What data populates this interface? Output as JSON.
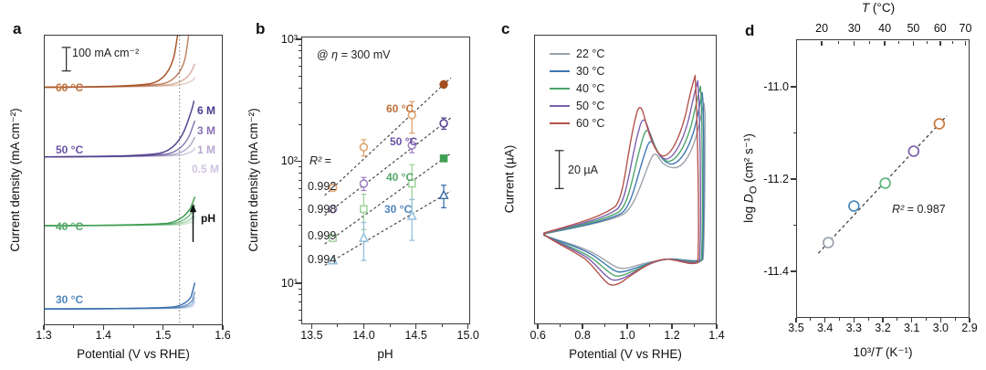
{
  "figure": {
    "panels": {
      "a": {
        "label": "a",
        "scale_bar_label": "100 mA cm⁻²",
        "y_title": "Current density (mA cm⁻²)",
        "x_title": "Potential (V vs RHE)",
        "temp_labels": [
          {
            "text": "60 °C",
            "color": "#bf6f38",
            "curve_color": "#a8552a"
          },
          {
            "text": "50 °C",
            "color": "#6b55a6",
            "curve_color": "#54418f"
          },
          {
            "text": "40 °C",
            "color": "#55a668",
            "curve_color": "#3f9e52"
          },
          {
            "text": "30 °C",
            "color": "#4d87bd",
            "curve_color": "#3c70ad"
          }
        ],
        "conc_labels": [
          {
            "text": "6 M",
            "color": "#4a3b91"
          },
          {
            "text": "3 M",
            "color": "#8a70b5"
          },
          {
            "text": "1 M",
            "color": "#b7a6d0"
          },
          {
            "text": "0.5 M",
            "color": "#cfc3de"
          }
        ],
        "arrow_label": "pH"
      },
      "b": {
        "label": "b",
        "annotation": {
          "pre": "@ ",
          "var": "η",
          "post": " = 300 mV"
        },
        "y_title": "Current density (mA cm⁻²)",
        "x_title": "pH",
        "y_tick_labels": [
          "10³",
          "10²",
          "10¹"
        ],
        "r2_heading": {
          "var": "R²",
          "rest": " ="
        },
        "r2_values": [
          "0.992",
          "0.998",
          "0.999",
          "0.994"
        ],
        "series_labels": [
          {
            "text": "60 °C",
            "color": "#bf6f38"
          },
          {
            "text": "50 °C",
            "color": "#6b55a6"
          },
          {
            "text": "40 °C",
            "color": "#55a668"
          },
          {
            "text": "30 °C",
            "color": "#4d87bd"
          }
        ]
      },
      "c": {
        "label": "c",
        "y_title": "Current (µA)",
        "x_title": "Potential (V vs RHE)",
        "scale_bar_label": "20 µA"
      },
      "d": {
        "label": "d",
        "top_title": {
          "var": "T",
          "rest": " (°C)"
        },
        "x_title": {
          "pre": "10³/",
          "var": "T",
          "post": " (K⁻¹)"
        },
        "y_title": {
          "pre": "log ",
          "var": "D",
          "sub": "O",
          "post": " (cm² s⁻¹)"
        },
        "r2": {
          "var": "R²",
          "rest": " = 0.987"
        }
      }
    }
  },
  "chart_data": [
    {
      "id": "a",
      "type": "line",
      "xlabel": "Potential (V vs RHE)",
      "ylabel": "Current density (mA cm⁻²)",
      "xlim": [
        1.3,
        1.6
      ],
      "x_ticks": [
        {
          "v": 1.3,
          "label": "1.3"
        },
        {
          "v": 1.4,
          "label": "1.4"
        },
        {
          "v": 1.5,
          "label": "1.5"
        },
        {
          "v": 1.6,
          "label": "1.6"
        }
      ],
      "x_minor_ticks": [
        1.35,
        1.45,
        1.55
      ],
      "scale_bar": "100 mA cm⁻²",
      "guide_line_V": 1.53,
      "note": "LSV curves vertically offset by temperature; four KOH concentrations per temperature; arrow marks increasing pH",
      "series": [
        {
          "name": "60 °C",
          "concentrations": [
            "6 M",
            "3 M",
            "1 M",
            "0.5 M"
          ],
          "onset_V": 1.44
        },
        {
          "name": "50 °C",
          "concentrations": [
            "6 M",
            "3 M",
            "1 M",
            "0.5 M"
          ],
          "onset_V": 1.46
        },
        {
          "name": "40 °C",
          "concentrations": [
            "6 M",
            "3 M",
            "1 M",
            "0.5 M"
          ],
          "onset_V": 1.48
        },
        {
          "name": "30 °C",
          "concentrations": [
            "6 M",
            "3 M",
            "1 M",
            "0.5 M"
          ],
          "onset_V": 1.5
        }
      ]
    },
    {
      "id": "b",
      "type": "scatter",
      "annotation": "@ η = 300 mV",
      "xlabel": "pH",
      "ylabel": "Current density (mA cm⁻²)",
      "ylog": true,
      "ylim": [
        5,
        1000
      ],
      "xlim": [
        13.4,
        15.02
      ],
      "x": [
        13.7,
        14.0,
        14.47,
        14.78
      ],
      "x_ticks": [
        {
          "v": 13.5,
          "label": "13.5"
        },
        {
          "v": 14.0,
          "label": "14.0"
        },
        {
          "v": 14.5,
          "label": "14.5"
        },
        {
          "v": 15.0,
          "label": "15.0"
        }
      ],
      "x_minor_ticks": [
        13.75,
        14.25,
        14.75
      ],
      "series": [
        {
          "name": "60 °C",
          "r2": 0.992,
          "marker": "circle",
          "color": "#dfa26d",
          "last_color": "#a34f1f",
          "last_filled": true,
          "values": [
            60,
            130,
            240,
            430
          ],
          "yerr": [
            0,
            20,
            70,
            0
          ]
        },
        {
          "name": "50 °C",
          "r2": 0.998,
          "marker": "circle",
          "color": "#9d82c2",
          "last_color": "#55418f",
          "last_filled": false,
          "values": [
            40,
            65,
            135,
            205
          ],
          "yerr": [
            0,
            8,
            18,
            22
          ]
        },
        {
          "name": "40 °C",
          "r2": 0.999,
          "marker": "square",
          "color": "#9ed29a",
          "last_color": "#3f9e52",
          "last_filled": true,
          "values": [
            23,
            40,
            65,
            105
          ],
          "yerr": [
            0,
            13,
            28,
            0
          ]
        },
        {
          "name": "30 °C",
          "r2": 0.994,
          "marker": "triangle",
          "color": "#93c0df",
          "last_color": "#3c70ad",
          "last_filled": false,
          "values": [
            15,
            23,
            35,
            52
          ],
          "yerr": [
            0,
            8,
            13,
            11
          ]
        }
      ]
    },
    {
      "id": "c",
      "type": "line",
      "xlabel": "Potential (V vs RHE)",
      "ylabel": "Current (µA)",
      "xlim": [
        0.583,
        1.4
      ],
      "x_ticks": [
        {
          "v": 0.6,
          "label": "0.6"
        },
        {
          "v": 0.8,
          "label": "0.8"
        },
        {
          "v": 1.0,
          "label": "1.0"
        },
        {
          "v": 1.2,
          "label": "1.2"
        },
        {
          "v": 1.4,
          "label": "1.4"
        }
      ],
      "x_minor_ticks": [
        0.7,
        0.9,
        1.1,
        1.3
      ],
      "scale_bar": "20 µA",
      "series": [
        {
          "name": "22 °C",
          "color": "#9aa1ab",
          "anodic_peak_V": 1.12,
          "cathodic_peak_V": 1.0
        },
        {
          "name": "30 °C",
          "color": "#3d77b2",
          "anodic_peak_V": 1.1,
          "cathodic_peak_V": 0.99
        },
        {
          "name": "40 °C",
          "color": "#4ba368",
          "anodic_peak_V": 1.08,
          "cathodic_peak_V": 0.98
        },
        {
          "name": "50 °C",
          "color": "#7b5fae",
          "anodic_peak_V": 1.06,
          "cathodic_peak_V": 0.97
        },
        {
          "name": "60 °C",
          "color": "#b5524a",
          "anodic_peak_V": 1.05,
          "cathodic_peak_V": 0.96
        }
      ]
    },
    {
      "id": "d",
      "type": "scatter",
      "xlabel": "10³/T (K⁻¹)",
      "ylabel": "log Dₒ (cm² s⁻¹)",
      "top_xlabel": "T (°C)",
      "xlim": [
        3.5,
        2.9
      ],
      "ylim": [
        -11.5,
        -10.9
      ],
      "r_squared": 0.987,
      "x_ticks": [
        {
          "v": 3.5,
          "label": "3.5"
        },
        {
          "v": 3.4,
          "label": "3.4"
        },
        {
          "v": 3.3,
          "label": "3.3"
        },
        {
          "v": 3.2,
          "label": "3.2"
        },
        {
          "v": 3.1,
          "label": "3.1"
        },
        {
          "v": 3.0,
          "label": "3.0"
        },
        {
          "v": 2.9,
          "label": "2.9"
        }
      ],
      "x_minor_ticks": [
        3.45,
        3.35,
        3.25,
        3.15,
        3.05,
        2.95
      ],
      "top_ticks": [
        {
          "v": 20,
          "label": "20"
        },
        {
          "v": 30,
          "label": "30"
        },
        {
          "v": 40,
          "label": "40"
        },
        {
          "v": 50,
          "label": "50"
        },
        {
          "v": 60,
          "label": "60"
        },
        {
          "v": 70,
          "label": "70"
        }
      ],
      "top_minor_ticks": [
        25,
        35,
        45,
        55,
        65
      ],
      "y_ticks": [
        {
          "v": -11.0,
          "label": "-11.0"
        },
        {
          "v": -11.2,
          "label": "-11.2"
        },
        {
          "v": -11.4,
          "label": "-11.4"
        }
      ],
      "y_minor_ticks": [
        -11.1,
        -11.3
      ],
      "points": [
        {
          "name": "22 °C",
          "x": 3.39,
          "y": -11.34,
          "color": "#9aa1ab"
        },
        {
          "name": "30 °C",
          "x": 3.3,
          "y": -11.26,
          "color": "#4a86be"
        },
        {
          "name": "40 °C",
          "x": 3.19,
          "y": -11.21,
          "color": "#5cb87a"
        },
        {
          "name": "50 °C",
          "x": 3.09,
          "y": -11.14,
          "color": "#7b5fae"
        },
        {
          "name": "60 °C",
          "x": 3.0,
          "y": -11.08,
          "color": "#c8763a"
        }
      ]
    }
  ]
}
